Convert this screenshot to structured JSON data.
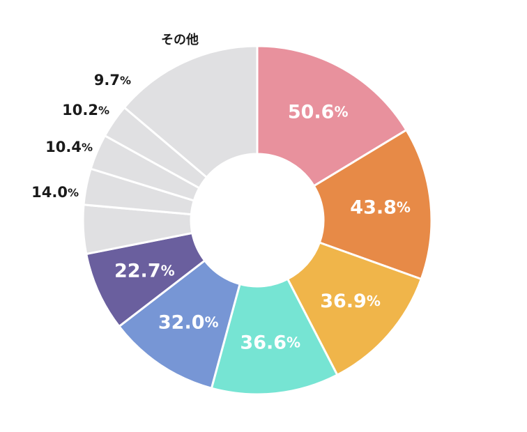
{
  "chart_data": {
    "type": "pie",
    "variant": "donut",
    "segments": [
      {
        "number": "50.6",
        "unit": "%",
        "value": 50.6,
        "color": "#e8919d",
        "label_placement": "inside"
      },
      {
        "number": "43.8",
        "unit": "%",
        "value": 43.8,
        "color": "#e78a47",
        "label_placement": "inside"
      },
      {
        "number": "36.9",
        "unit": "%",
        "value": 36.9,
        "color": "#f0b54a",
        "label_placement": "inside"
      },
      {
        "number": "36.6",
        "unit": "%",
        "value": 36.6,
        "color": "#76e4d3",
        "label_placement": "inside"
      },
      {
        "number": "32.0",
        "unit": "%",
        "value": 32.0,
        "color": "#7796d5",
        "label_placement": "inside"
      },
      {
        "number": "22.7",
        "unit": "%",
        "value": 22.7,
        "color": "#6a5f9e",
        "label_placement": "inside"
      },
      {
        "number": "14.0",
        "unit": "%",
        "value": 14.0,
        "color": "#e0e0e2",
        "label_placement": "outside"
      },
      {
        "number": "10.4",
        "unit": "%",
        "value": 10.4,
        "color": "#e0e0e2",
        "label_placement": "outside"
      },
      {
        "number": "10.2",
        "unit": "%",
        "value": 10.2,
        "color": "#e0e0e2",
        "label_placement": "outside"
      },
      {
        "number": "9.7",
        "unit": "%",
        "value": 9.7,
        "color": "#e0e0e2",
        "label_placement": "outside"
      }
    ],
    "other": {
      "label": "その他",
      "color": "#e0e0e2"
    },
    "legend": "none"
  }
}
